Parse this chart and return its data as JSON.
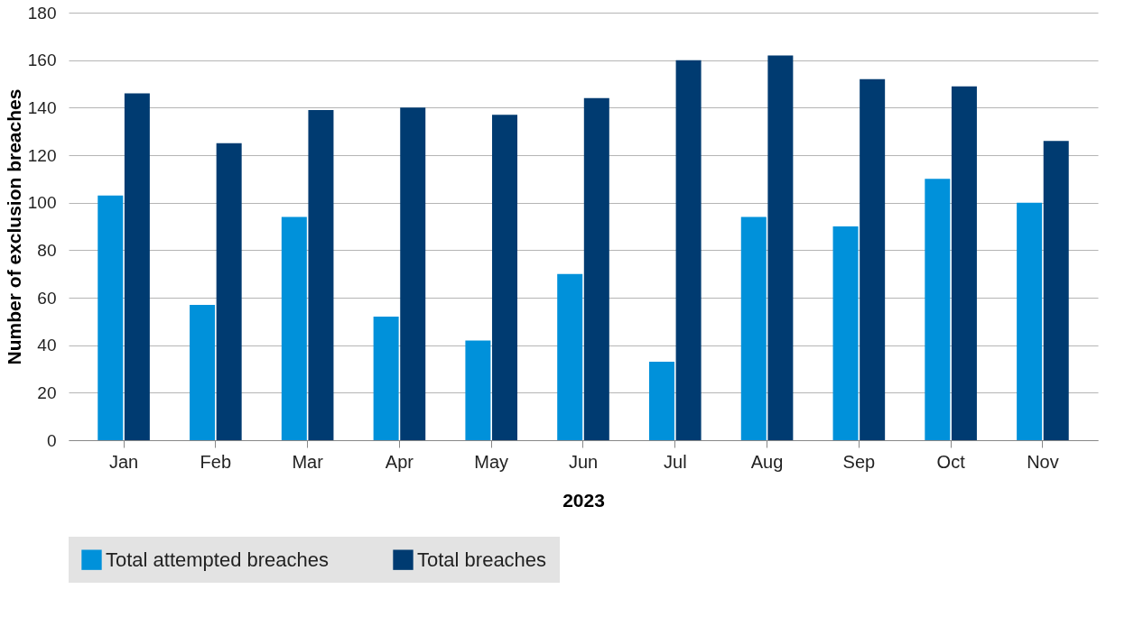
{
  "chart_data": {
    "type": "bar",
    "xlabel": "2023",
    "ylabel": "Number of exclusion breaches",
    "categories": [
      "Jan",
      "Feb",
      "Mar",
      "Apr",
      "May",
      "Jun",
      "Jul",
      "Aug",
      "Sep",
      "Oct",
      "Nov"
    ],
    "series": [
      {
        "name": "Total attempted breaches",
        "color": "#0091da",
        "values": [
          103,
          57,
          94,
          52,
          42,
          70,
          33,
          94,
          90,
          110,
          100
        ]
      },
      {
        "name": "Total breaches",
        "color": "#003b71",
        "values": [
          146,
          125,
          139,
          140,
          137,
          144,
          160,
          162,
          152,
          149,
          126
        ]
      }
    ],
    "ylim": [
      0,
      180
    ],
    "yticks": [
      0,
      20,
      40,
      60,
      80,
      100,
      120,
      140,
      160,
      180
    ],
    "grid": "y",
    "legend": "bottom"
  }
}
